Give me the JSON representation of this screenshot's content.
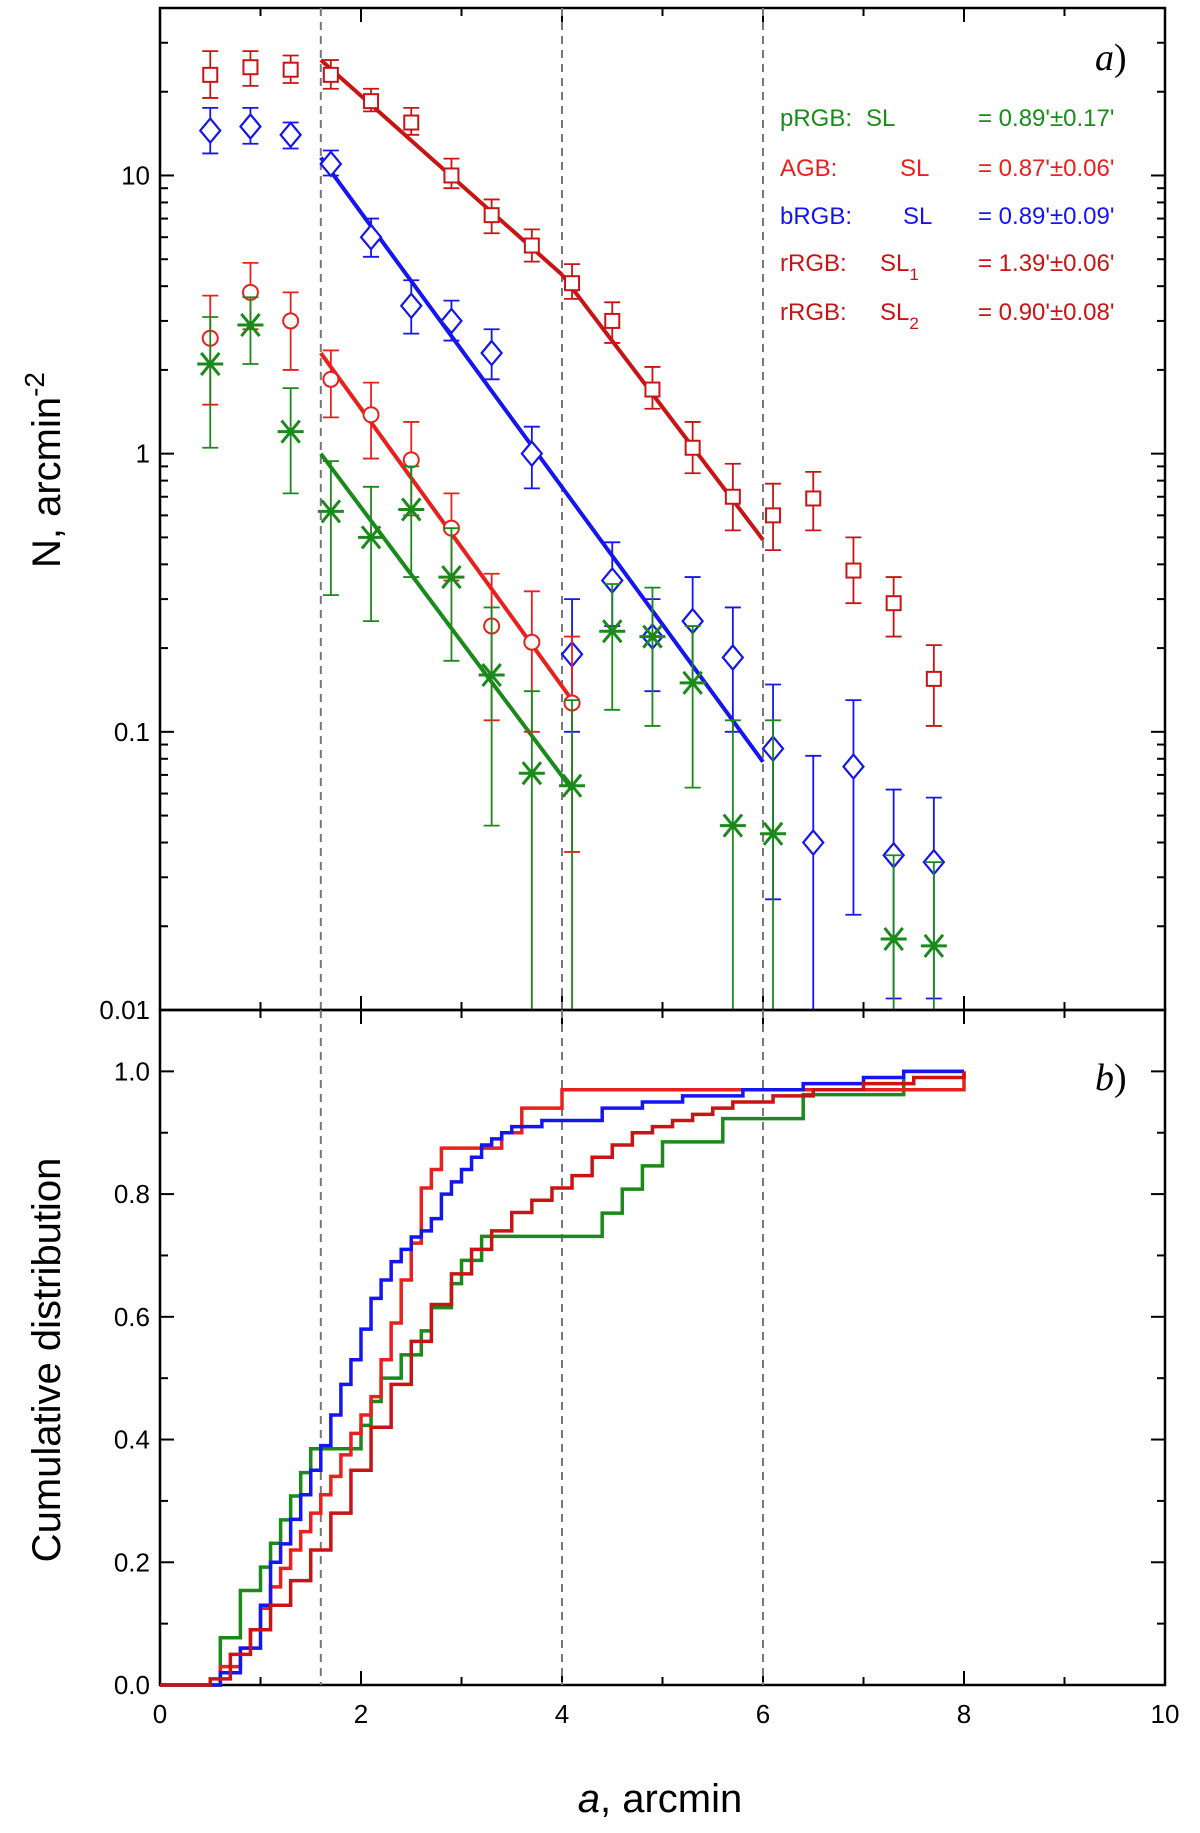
{
  "chart_data": [
    {
      "type": "scatter",
      "panel_label": "a",
      "panel_label_suffix": ")",
      "ylabel": "N, arcmin",
      "ylabel_sup": "-2",
      "yscale": "log",
      "xlim": [
        0,
        10
      ],
      "ylim": [
        0.01,
        40
      ],
      "xticks": [
        0,
        2,
        4,
        6,
        8,
        10
      ],
      "yticks": [
        0.01,
        0.1,
        1,
        10
      ],
      "ytick_labels": [
        "0.01",
        "0.1",
        "1",
        "10"
      ],
      "vlines": [
        1.6,
        4.0,
        6.0
      ],
      "legend": [
        {
          "name": "pRGB:",
          "sl": "SL",
          "sub": "",
          "value": "= 0.89'±0.17'",
          "color": "#1a8a1a"
        },
        {
          "name": "AGB:",
          "sl": "SL",
          "sub": "",
          "value": "= 0.87'±0.06'",
          "color": "#e8201e"
        },
        {
          "name": "bRGB:",
          "sl": "SL",
          "sub": "",
          "value": "= 0.89'±0.09'",
          "color": "#1515f0"
        },
        {
          "name": "rRGB:",
          "sl": "SL",
          "sub": "1",
          "value": "= 1.39'±0.06'",
          "color": "#c81414"
        },
        {
          "name": "rRGB:",
          "sl": "SL",
          "sub": "2",
          "value": "= 0.90'±0.08'",
          "color": "#c81414"
        }
      ],
      "series": [
        {
          "name": "rRGB",
          "marker": "square",
          "color": "#c81414",
          "x": [
            0.5,
            0.9,
            1.3,
            1.7,
            2.1,
            2.5,
            2.9,
            3.3,
            3.7,
            4.1,
            4.5,
            4.9,
            5.3,
            5.7,
            6.1,
            6.5,
            6.9,
            7.3,
            7.7
          ],
          "y": [
            23,
            24.5,
            24,
            23,
            18.5,
            15.5,
            10,
            7.2,
            5.6,
            4.1,
            3.0,
            1.7,
            1.05,
            0.7,
            0.6,
            0.69,
            0.38,
            0.29,
            0.155
          ],
          "ylo": [
            19,
            21,
            21.5,
            20.5,
            17,
            14,
            9,
            6.2,
            4.9,
            3.6,
            2.5,
            1.45,
            0.85,
            0.53,
            0.45,
            0.53,
            0.29,
            0.22,
            0.105
          ],
          "yhi": [
            28,
            28,
            27,
            26,
            20.5,
            17.5,
            11.5,
            8.2,
            6.4,
            4.8,
            3.5,
            2.05,
            1.3,
            0.92,
            0.78,
            0.86,
            0.5,
            0.36,
            0.205
          ]
        },
        {
          "name": "bRGB",
          "marker": "diamond",
          "color": "#1515f0",
          "x": [
            0.5,
            0.9,
            1.3,
            1.7,
            2.1,
            2.5,
            2.9,
            3.3,
            3.7,
            4.1,
            4.5,
            4.9,
            5.3,
            5.7,
            6.1,
            6.5,
            6.9,
            7.3,
            7.7
          ],
          "y": [
            14.5,
            15.0,
            14.0,
            11.0,
            6.0,
            3.4,
            3.0,
            2.3,
            1.0,
            0.19,
            0.35,
            0.22,
            0.25,
            0.185,
            0.087,
            0.04,
            0.075,
            0.036,
            0.034
          ],
          "ylo": [
            12,
            13,
            12.5,
            10,
            5.1,
            2.7,
            2.55,
            1.85,
            0.75,
            0.1,
            0.24,
            0.14,
            0.15,
            0.1,
            0.025,
            0.008,
            0.022,
            0.011,
            0.011
          ],
          "yhi": [
            17.5,
            17.5,
            15.5,
            12.3,
            7.0,
            4.2,
            3.55,
            2.8,
            1.25,
            0.3,
            0.48,
            0.3,
            0.36,
            0.28,
            0.148,
            0.082,
            0.13,
            0.062,
            0.058
          ]
        },
        {
          "name": "AGB",
          "marker": "circle",
          "color": "#e8201e",
          "x": [
            0.5,
            0.9,
            1.3,
            1.7,
            2.1,
            2.5,
            2.9,
            3.3,
            3.7,
            4.1
          ],
          "y": [
            2.6,
            3.8,
            3.0,
            1.85,
            1.38,
            0.95,
            0.54,
            0.24,
            0.21,
            0.127
          ],
          "ylo": [
            1.5,
            2.8,
            2.0,
            1.35,
            0.96,
            0.6,
            0.35,
            0.11,
            0.1,
            0.037
          ],
          "yhi": [
            3.7,
            4.85,
            3.8,
            2.35,
            1.8,
            1.3,
            0.72,
            0.37,
            0.32,
            0.22
          ]
        },
        {
          "name": "pRGB",
          "marker": "asterisk",
          "color": "#1a8a1a",
          "x": [
            0.5,
            0.9,
            1.3,
            1.7,
            2.1,
            2.5,
            2.9,
            3.3,
            3.7,
            4.1,
            4.5,
            4.9,
            5.3,
            5.7,
            6.1,
            7.3,
            7.7
          ],
          "y": [
            2.1,
            2.9,
            1.2,
            0.62,
            0.5,
            0.63,
            0.36,
            0.16,
            0.071,
            0.064,
            0.23,
            0.22,
            0.15,
            0.046,
            0.043,
            0.018,
            0.017
          ],
          "ylo": [
            1.05,
            2.1,
            0.72,
            0.31,
            0.25,
            0.36,
            0.18,
            0.046,
            0.001,
            0.001,
            0.12,
            0.105,
            0.063,
            0.001,
            0.001,
            0.001,
            0.001
          ],
          "yhi": [
            3.1,
            3.65,
            1.72,
            0.94,
            0.76,
            0.9,
            0.54,
            0.28,
            0.14,
            0.13,
            0.34,
            0.33,
            0.24,
            0.11,
            0.11,
            0.036,
            0.034
          ]
        }
      ],
      "fits": [
        {
          "name": "rRGB SL1",
          "color": "#c81414",
          "x": [
            1.6,
            4.0
          ],
          "y": [
            26.0,
            4.4
          ]
        },
        {
          "name": "rRGB SL2",
          "color": "#c81414",
          "x": [
            4.0,
            6.0
          ],
          "y": [
            4.4,
            0.49
          ]
        },
        {
          "name": "bRGB",
          "color": "#1515f0",
          "x": [
            1.6,
            6.0
          ],
          "y": [
            11.6,
            0.078
          ]
        },
        {
          "name": "AGB",
          "color": "#e8201e",
          "x": [
            1.6,
            4.1
          ],
          "y": [
            2.3,
            0.13
          ]
        },
        {
          "name": "pRGB",
          "color": "#1a8a1a",
          "x": [
            1.6,
            4.1
          ],
          "y": [
            1.0,
            0.062
          ]
        }
      ]
    },
    {
      "type": "line",
      "panel_label": "b",
      "panel_label_suffix": ")",
      "xlabel_italic": "a",
      "xlabel_rest": ", arcmin",
      "ylabel": "Cumulative distribution",
      "xlim": [
        0,
        10
      ],
      "ylim": [
        0,
        1.1
      ],
      "xticks": [
        0,
        2,
        4,
        6,
        8,
        10
      ],
      "xtick_labels": [
        "0",
        "2",
        "4",
        "6",
        "8",
        "10"
      ],
      "yticks": [
        0.0,
        0.2,
        0.4,
        0.6,
        0.8,
        1.0
      ],
      "ytick_labels": [
        "0.0",
        "0.2",
        "0.4",
        "0.6",
        "0.8",
        "1.0"
      ],
      "vlines": [
        1.6,
        4.0,
        6.0
      ],
      "series": [
        {
          "name": "pRGB",
          "color": "#1a8a1a",
          "x": [
            0.0,
            0.55,
            0.6,
            0.8,
            1.0,
            1.1,
            1.2,
            1.3,
            1.4,
            1.5,
            1.6,
            1.7,
            1.9,
            2.0,
            2.1,
            2.2,
            2.4,
            2.6,
            2.7,
            2.9,
            3.0,
            3.2,
            3.6,
            4.0,
            4.4,
            4.6,
            4.8,
            5.0,
            5.6,
            6.4,
            7.4,
            7.7,
            8.0
          ],
          "y": [
            0.0,
            0.0,
            0.077,
            0.154,
            0.192,
            0.231,
            0.269,
            0.308,
            0.346,
            0.385,
            0.385,
            0.385,
            0.385,
            0.423,
            0.462,
            0.5,
            0.538,
            0.577,
            0.615,
            0.654,
            0.692,
            0.731,
            0.731,
            0.731,
            0.769,
            0.808,
            0.846,
            0.885,
            0.923,
            0.962,
            1.0,
            1.0,
            1.0
          ]
        },
        {
          "name": "AGB",
          "color": "#e8201e",
          "x": [
            0.0,
            0.4,
            0.6,
            0.8,
            0.9,
            1.0,
            1.1,
            1.2,
            1.3,
            1.4,
            1.5,
            1.6,
            1.7,
            1.8,
            1.9,
            2.0,
            2.1,
            2.2,
            2.3,
            2.4,
            2.5,
            2.6,
            2.7,
            2.8,
            3.0,
            3.2,
            3.4,
            3.6,
            4.0,
            4.4,
            5.0,
            6.0,
            7.0,
            8.0
          ],
          "y": [
            0.0,
            0.0,
            0.03,
            0.06,
            0.09,
            0.125,
            0.16,
            0.19,
            0.22,
            0.25,
            0.28,
            0.31,
            0.34,
            0.375,
            0.41,
            0.44,
            0.47,
            0.53,
            0.59,
            0.66,
            0.72,
            0.81,
            0.84,
            0.875,
            0.875,
            0.875,
            0.9,
            0.94,
            0.97,
            0.97,
            0.97,
            0.97,
            0.97,
            1.0
          ]
        },
        {
          "name": "bRGB",
          "color": "#1515f0",
          "x": [
            0.0,
            0.4,
            0.6,
            0.8,
            1.0,
            1.1,
            1.2,
            1.3,
            1.4,
            1.5,
            1.6,
            1.7,
            1.8,
            1.9,
            2.0,
            2.1,
            2.2,
            2.3,
            2.4,
            2.5,
            2.6,
            2.7,
            2.8,
            2.9,
            3.0,
            3.1,
            3.2,
            3.3,
            3.4,
            3.5,
            3.6,
            3.8,
            4.0,
            4.4,
            4.8,
            5.2,
            5.8,
            6.4,
            7.0,
            7.4,
            8.0
          ],
          "y": [
            0.0,
            0.0,
            0.02,
            0.06,
            0.13,
            0.2,
            0.23,
            0.27,
            0.31,
            0.35,
            0.39,
            0.44,
            0.49,
            0.53,
            0.58,
            0.63,
            0.66,
            0.69,
            0.71,
            0.73,
            0.74,
            0.76,
            0.8,
            0.82,
            0.84,
            0.86,
            0.88,
            0.89,
            0.9,
            0.91,
            0.91,
            0.92,
            0.92,
            0.94,
            0.95,
            0.96,
            0.97,
            0.98,
            0.99,
            1.0,
            1.0
          ]
        },
        {
          "name": "rRGB",
          "color": "#c81414",
          "x": [
            0.0,
            0.2,
            0.5,
            0.7,
            0.9,
            1.1,
            1.3,
            1.5,
            1.7,
            1.9,
            2.1,
            2.3,
            2.5,
            2.7,
            2.9,
            3.1,
            3.3,
            3.5,
            3.7,
            3.9,
            4.1,
            4.3,
            4.5,
            4.7,
            4.9,
            5.1,
            5.3,
            5.5,
            5.7,
            5.9,
            6.1,
            6.5,
            7.0,
            7.5,
            8.0
          ],
          "y": [
            0.0,
            0.0,
            0.01,
            0.05,
            0.09,
            0.13,
            0.17,
            0.22,
            0.28,
            0.35,
            0.42,
            0.49,
            0.56,
            0.62,
            0.67,
            0.71,
            0.74,
            0.77,
            0.79,
            0.81,
            0.83,
            0.86,
            0.88,
            0.9,
            0.91,
            0.92,
            0.93,
            0.94,
            0.95,
            0.95,
            0.96,
            0.97,
            0.98,
            0.99,
            1.0
          ]
        }
      ]
    }
  ]
}
